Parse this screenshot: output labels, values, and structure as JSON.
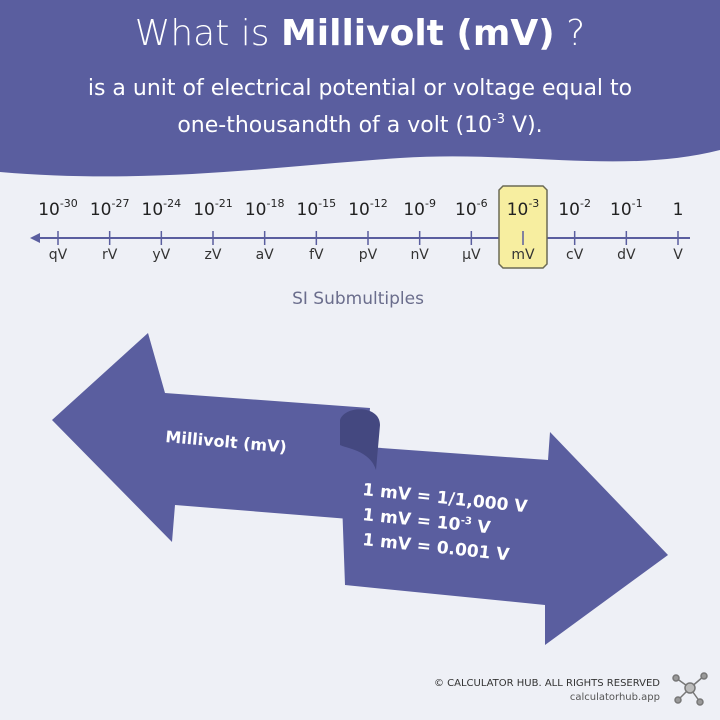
{
  "header": {
    "title": {
      "pre": "What is ",
      "bold": "Millivolt (mV)",
      "post": " ?"
    },
    "line1": "is a unit of electrical potential or voltage equal to",
    "line2": {
      "pre": "one-thousandth of a volt (10",
      "sup": "-3",
      "post": " V)."
    }
  },
  "scale": {
    "items": [
      {
        "base": "10",
        "exp": "-30",
        "unit": "qV"
      },
      {
        "base": "10",
        "exp": "-27",
        "unit": "rV"
      },
      {
        "base": "10",
        "exp": "-24",
        "unit": "yV"
      },
      {
        "base": "10",
        "exp": "-21",
        "unit": "zV"
      },
      {
        "base": "10",
        "exp": "-18",
        "unit": "aV"
      },
      {
        "base": "10",
        "exp": "-15",
        "unit": "fV"
      },
      {
        "base": "10",
        "exp": "-12",
        "unit": "pV"
      },
      {
        "base": "10",
        "exp": "-9",
        "unit": "nV"
      },
      {
        "base": "10",
        "exp": "-6",
        "unit": "µV"
      },
      {
        "base": "10",
        "exp": "-3",
        "unit": "mV",
        "highlight": true
      },
      {
        "base": "10",
        "exp": "-2",
        "unit": "cV"
      },
      {
        "base": "10",
        "exp": "-1",
        "unit": "dV"
      },
      {
        "base": "1",
        "unit": "V"
      }
    ],
    "caption": "SI Submultiples"
  },
  "arrow": {
    "left_label": "Millivolt (mV)",
    "equations": [
      {
        "pre": "1 mV = 1/1,000 V"
      },
      {
        "pre": "1 mV = 10",
        "sup": "-3",
        "post": " V"
      },
      {
        "pre": "1 mV = 0.001 V"
      }
    ]
  },
  "footer": {
    "copyright": "© CALCULATOR HUB. ALL RIGHTS RESERVED",
    "url": "calculatorhub.app"
  }
}
